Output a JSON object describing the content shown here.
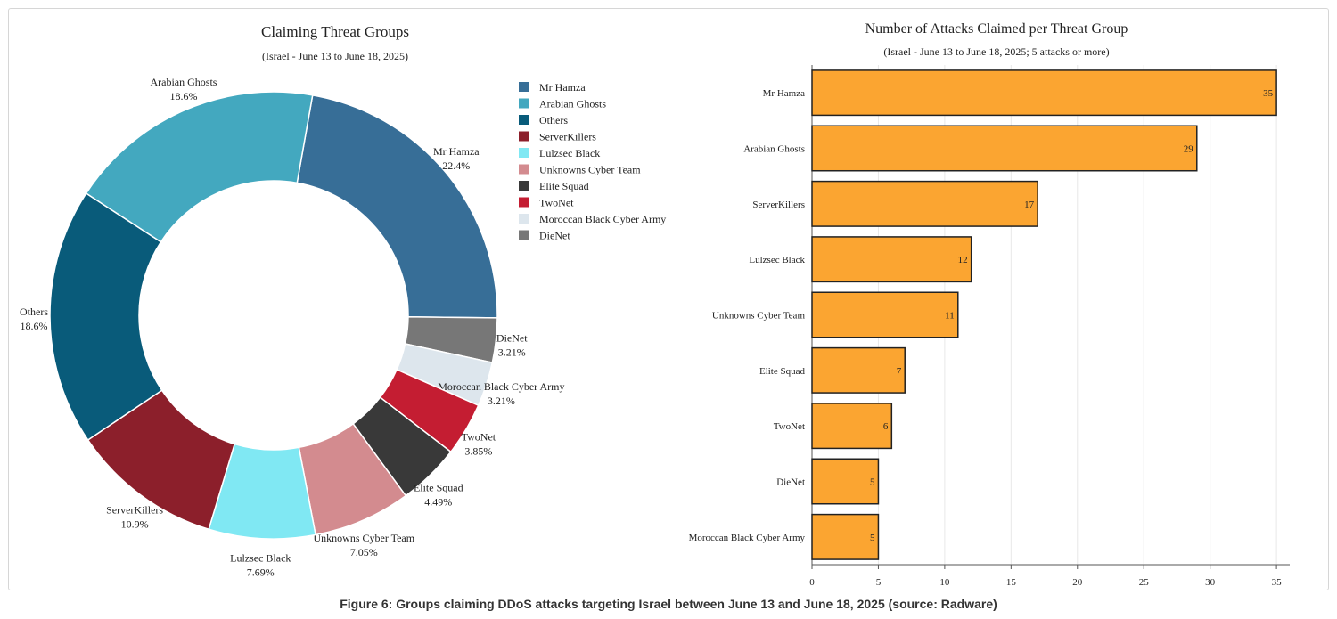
{
  "caption": "Figure 6: Groups claiming DDoS attacks targeting Israel between June 13 and June 18, 2025 (source: Radware)",
  "chart_data": [
    {
      "type": "pie",
      "variant": "donut",
      "title": "Claiming Threat Groups",
      "subtitle": "(Israel - June 13 to June 18, 2025)",
      "legend_position": "right",
      "slices": [
        {
          "name": "Mr Hamza",
          "value": 22.4,
          "label": "22.4%",
          "color": "#376e97"
        },
        {
          "name": "DieNet",
          "value": 3.21,
          "label": "3.21%",
          "color": "#777777"
        },
        {
          "name": "Moroccan Black Cyber Army",
          "value": 3.21,
          "label": "3.21%",
          "color": "#dde6ed"
        },
        {
          "name": "TwoNet",
          "value": 3.85,
          "label": "3.85%",
          "color": "#c41d32"
        },
        {
          "name": "Elite Squad",
          "value": 4.49,
          "label": "4.49%",
          "color": "#393939"
        },
        {
          "name": "Unknowns Cyber Team",
          "value": 7.05,
          "label": "7.05%",
          "color": "#d38b8f"
        },
        {
          "name": "Lulzsec Black",
          "value": 7.69,
          "label": "7.69%",
          "color": "#80e8f3"
        },
        {
          "name": "ServerKillers",
          "value": 10.9,
          "label": "10.9%",
          "color": "#8c1f2b"
        },
        {
          "name": "Others",
          "value": 18.6,
          "label": "18.6%",
          "color": "#095b7a"
        },
        {
          "name": "Arabian Ghosts",
          "value": 18.6,
          "label": "18.6%",
          "color": "#43a8bf"
        }
      ],
      "legend": [
        {
          "name": "Mr Hamza",
          "color": "#376e97"
        },
        {
          "name": "Arabian Ghosts",
          "color": "#43a8bf"
        },
        {
          "name": "Others",
          "color": "#095b7a"
        },
        {
          "name": "ServerKillers",
          "color": "#8c1f2b"
        },
        {
          "name": "Lulzsec Black",
          "color": "#80e8f3"
        },
        {
          "name": "Unknowns Cyber Team",
          "color": "#d38b8f"
        },
        {
          "name": "Elite Squad",
          "color": "#393939"
        },
        {
          "name": "TwoNet",
          "color": "#c41d32"
        },
        {
          "name": "Moroccan Black Cyber Army",
          "color": "#dde6ed"
        },
        {
          "name": "DieNet",
          "color": "#777777"
        }
      ]
    },
    {
      "type": "bar",
      "orientation": "horizontal",
      "title": "Number of Attacks Claimed per Threat Group",
      "subtitle": "(Israel - June 13 to June 18, 2025; 5 attacks or more)",
      "categories": [
        "Mr Hamza",
        "Arabian Ghosts",
        "ServerKillers",
        "Lulzsec Black",
        "Unknowns Cyber Team",
        "Elite Squad",
        "TwoNet",
        "DieNet",
        "Moroccan Black Cyber Army"
      ],
      "values": [
        35,
        29,
        17,
        12,
        11,
        7,
        6,
        5,
        5
      ],
      "xlim": [
        0,
        36
      ],
      "xticks": [
        0,
        5,
        10,
        15,
        20,
        25,
        30,
        35
      ],
      "grid": true,
      "bar_color": "#fba531",
      "bar_edge_color": "#222222"
    }
  ]
}
